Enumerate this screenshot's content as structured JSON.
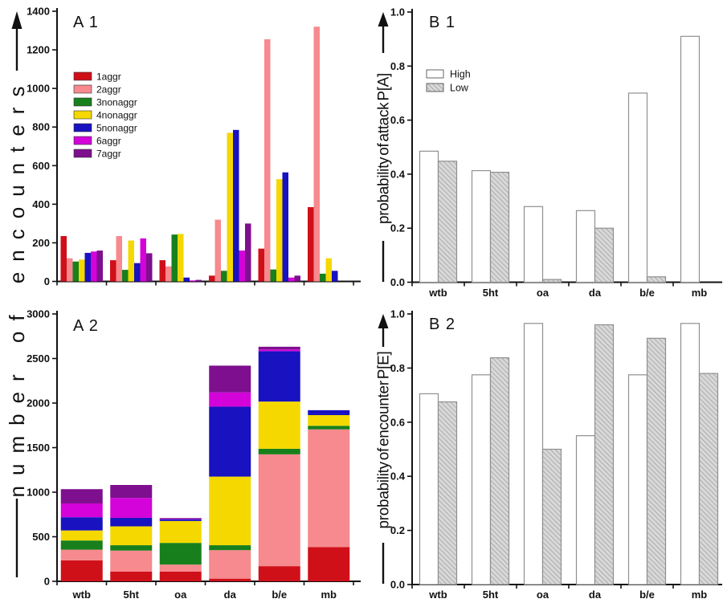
{
  "figure": {
    "left_axis_label": "number of encounters",
    "panel_labels": {
      "a1": "A 1",
      "a2": "A 2",
      "b1": "B 1",
      "b2": "B 2"
    }
  },
  "colors": {
    "aggr1_red": "#cf1019",
    "aggr2_salmon": "#f68a8e",
    "nonaggr3_green": "#17801c",
    "nonaggr4_yellow": "#f4d800",
    "nonaggr5_blue": "#1812c0",
    "aggr6_magenta": "#d303d9",
    "aggr7_purple": "#7e0f8e",
    "high_fill": "#ffffff",
    "low_fill": "#d8d8d8",
    "bar_edge_gray": "#8f8f8f",
    "axis_black": "#111111"
  },
  "chart_data": [
    {
      "id": "A1",
      "type": "bar",
      "mode": "grouped",
      "panel_label": "A 1",
      "categories": [
        "wtb",
        "5ht",
        "oa",
        "da",
        "b/e",
        "mb"
      ],
      "series": [
        {
          "name": "1aggr",
          "color": "#cf1019",
          "values": [
            235,
            110,
            110,
            30,
            170,
            385
          ]
        },
        {
          "name": "2aggr",
          "color": "#f68a8e",
          "values": [
            120,
            235,
            78,
            320,
            1255,
            1320
          ]
        },
        {
          "name": "3nonaggr",
          "color": "#17801c",
          "values": [
            103,
            60,
            243,
            55,
            62,
            40
          ]
        },
        {
          "name": "4nonaggr",
          "color": "#f4d800",
          "values": [
            113,
            212,
            246,
            770,
            530,
            120
          ]
        },
        {
          "name": "5nonaggr",
          "color": "#1812c0",
          "values": [
            148,
            95,
            20,
            785,
            565,
            55
          ]
        },
        {
          "name": "6aggr",
          "color": "#d303d9",
          "values": [
            155,
            223,
            5,
            160,
            20,
            0
          ]
        },
        {
          "name": "7aggr",
          "color": "#7e0f8e",
          "values": [
            160,
            146,
            8,
            300,
            30,
            0
          ]
        }
      ],
      "ylabel": "number of encounters",
      "ylim": [
        0,
        1400
      ],
      "ytick_step": 200,
      "ytick_decimals": 0,
      "x_tick_labels_visible": false,
      "legend_visible": true,
      "legend_position": "upper-left-inside",
      "grid": false
    },
    {
      "id": "A2",
      "type": "bar",
      "mode": "stacked",
      "panel_label": "A 2",
      "categories": [
        "wtb",
        "5ht",
        "oa",
        "da",
        "b/e",
        "mb"
      ],
      "series": [
        {
          "name": "1aggr",
          "color": "#cf1019",
          "values": [
            235,
            110,
            110,
            30,
            170,
            385
          ]
        },
        {
          "name": "2aggr",
          "color": "#f68a8e",
          "values": [
            120,
            235,
            78,
            320,
            1255,
            1320
          ]
        },
        {
          "name": "3nonaggr",
          "color": "#17801c",
          "values": [
            103,
            60,
            243,
            55,
            62,
            40
          ]
        },
        {
          "name": "4nonaggr",
          "color": "#f4d800",
          "values": [
            113,
            212,
            246,
            770,
            530,
            120
          ]
        },
        {
          "name": "5nonaggr",
          "color": "#1812c0",
          "values": [
            148,
            95,
            20,
            785,
            565,
            55
          ]
        },
        {
          "name": "6aggr",
          "color": "#d303d9",
          "values": [
            155,
            223,
            5,
            160,
            20,
            0
          ]
        },
        {
          "name": "7aggr",
          "color": "#7e0f8e",
          "values": [
            160,
            146,
            8,
            300,
            30,
            0
          ]
        }
      ],
      "ylabel": "number of encounters",
      "ylim": [
        0,
        3000
      ],
      "ytick_step": 500,
      "ytick_decimals": 0,
      "x_tick_labels_visible": true,
      "legend_visible": false,
      "grid": false
    },
    {
      "id": "B1",
      "type": "bar",
      "mode": "grouped",
      "panel_label": "B 1",
      "categories": [
        "wtb",
        "5ht",
        "oa",
        "da",
        "b/e",
        "mb"
      ],
      "series": [
        {
          "name": "High",
          "fill": "white",
          "values": [
            0.485,
            0.413,
            0.28,
            0.265,
            0.7,
            0.91
          ]
        },
        {
          "name": "Low",
          "fill": "hatched",
          "values": [
            0.448,
            0.407,
            0.01,
            0.2,
            0.02,
            0
          ]
        }
      ],
      "ylabel": "probability of attack P[A]",
      "ylim": [
        0,
        1.0
      ],
      "ytick_step": 0.2,
      "ytick_decimals": 1,
      "x_tick_labels_visible": true,
      "legend_visible": true,
      "legend_position": "upper-left-inside",
      "grid": false
    },
    {
      "id": "B2",
      "type": "bar",
      "mode": "grouped",
      "panel_label": "B 2",
      "categories": [
        "wtb",
        "5ht",
        "oa",
        "da",
        "b/e",
        "mb"
      ],
      "series": [
        {
          "name": "High",
          "fill": "white",
          "values": [
            0.705,
            0.775,
            0.965,
            0.55,
            0.775,
            0.965
          ]
        },
        {
          "name": "Low",
          "fill": "hatched",
          "values": [
            0.675,
            0.838,
            0.5,
            0.96,
            0.91,
            0.78
          ]
        }
      ],
      "ylabel": "probability of encounter P[E]",
      "ylim": [
        0,
        1.0
      ],
      "ytick_step": 0.2,
      "ytick_decimals": 1,
      "x_tick_labels_visible": true,
      "legend_visible": false,
      "grid": false
    }
  ]
}
